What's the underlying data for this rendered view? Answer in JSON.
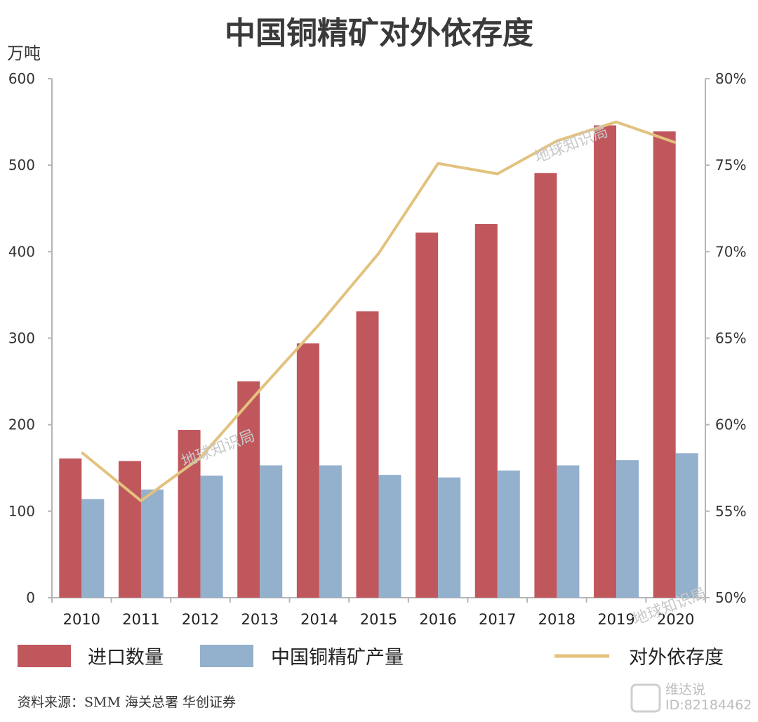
{
  "chart_data": {
    "type": "bar",
    "title": "中国铜精矿对外依存度",
    "y_left_label": "万吨",
    "y_left_ticks": [
      "0",
      "100",
      "200",
      "300",
      "400",
      "500",
      "600"
    ],
    "y_left_lim": [
      0,
      600
    ],
    "y_right_ticks": [
      "50%",
      "55%",
      "60%",
      "65%",
      "70%",
      "75%",
      "80%"
    ],
    "y_right_lim": [
      50,
      80
    ],
    "categories": [
      "2010",
      "2011",
      "2012",
      "2013",
      "2014",
      "2015",
      "2016",
      "2017",
      "2018",
      "2019",
      "2020"
    ],
    "series": [
      {
        "name": "进口数量",
        "kind": "bar",
        "axis": "left",
        "color": "#c0575c",
        "values": [
          161,
          158,
          194,
          250,
          294,
          331,
          422,
          432,
          491,
          546,
          539
        ]
      },
      {
        "name": "中国铜精矿产量",
        "kind": "bar",
        "axis": "left",
        "color": "#93b0cc",
        "values": [
          114,
          125,
          141,
          153,
          153,
          142,
          139,
          147,
          153,
          159,
          167
        ]
      },
      {
        "name": "对外依存度",
        "kind": "line",
        "axis": "right",
        "color": "#e2c27e",
        "values": [
          58.4,
          55.6,
          58.1,
          62.0,
          65.8,
          69.9,
          75.1,
          74.5,
          76.4,
          77.5,
          76.3
        ]
      }
    ],
    "grid": false,
    "legend_position": "bottom",
    "source": "资料来源：SMM 海关总署 华创证券"
  },
  "watermarks": {
    "text": "地球知识局",
    "corner_name": "维达说",
    "corner_id": "ID:82184462"
  }
}
